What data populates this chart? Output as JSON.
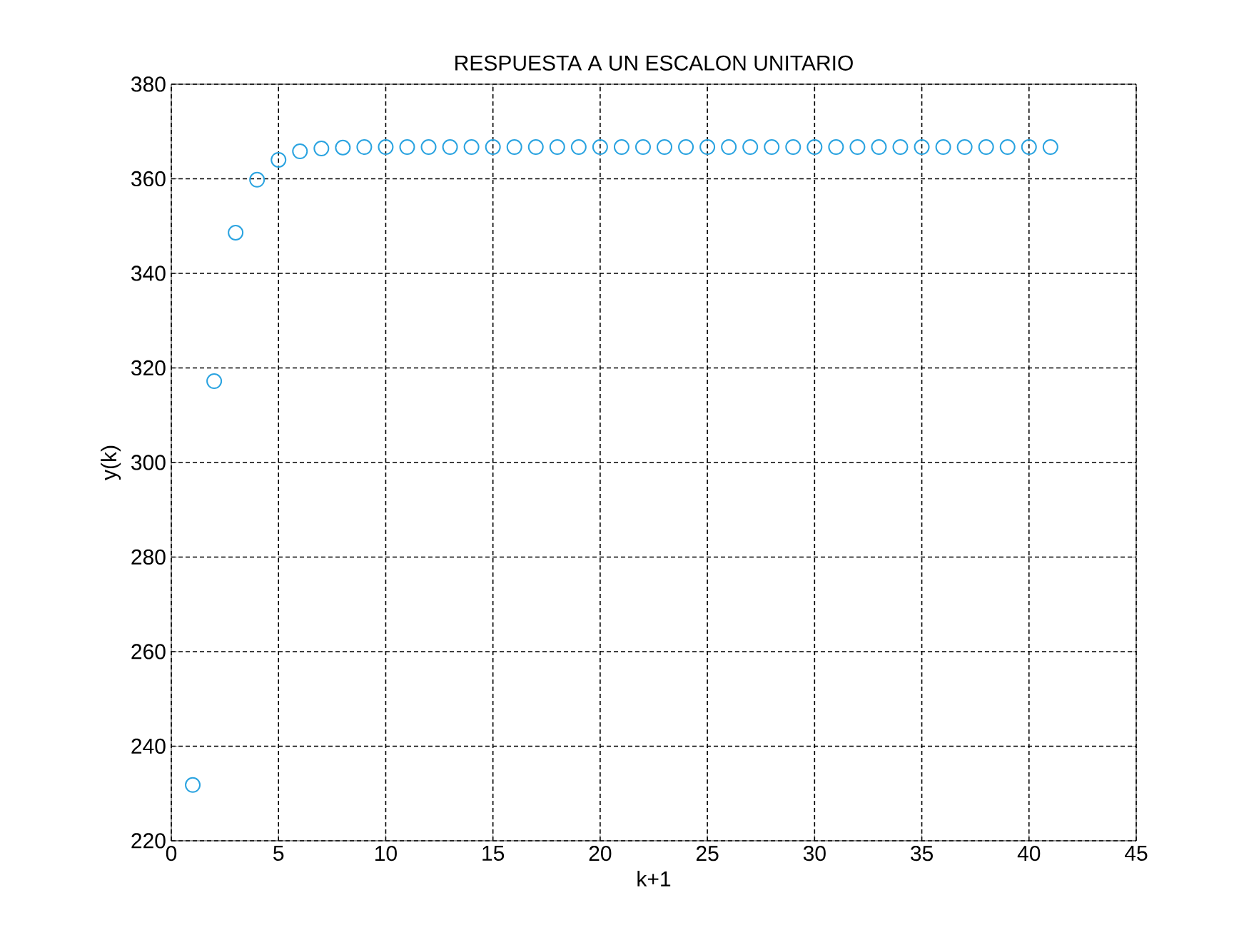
{
  "chart_data": {
    "type": "scatter",
    "title": "RESPUESTA A UN ESCALON UNITARIO",
    "xlabel": "k+1",
    "ylabel": "y(k)",
    "x": [
      1,
      2,
      3,
      4,
      5,
      6,
      7,
      8,
      9,
      10,
      11,
      12,
      13,
      14,
      15,
      16,
      17,
      18,
      19,
      20,
      21,
      22,
      23,
      24,
      25,
      26,
      27,
      28,
      29,
      30,
      31,
      32,
      33,
      34,
      35,
      36,
      37,
      38,
      39,
      40,
      41
    ],
    "series": [
      {
        "color": "#2aa3e0",
        "values": [
          231.8,
          317.2,
          348.6,
          359.8,
          364,
          365.8,
          366.4,
          366.6,
          366.7,
          366.7,
          366.7,
          366.7,
          366.7,
          366.7,
          366.7,
          366.7,
          366.7,
          366.7,
          366.7,
          366.7,
          366.7,
          366.7,
          366.7,
          366.7,
          366.7,
          366.7,
          366.7,
          366.7,
          366.7,
          366.7,
          366.7,
          366.7,
          366.7,
          366.7,
          366.7,
          366.7,
          366.7,
          366.7,
          366.7,
          366.7,
          366.7
        ]
      }
    ],
    "xlim": [
      0,
      45
    ],
    "ylim": [
      220,
      380
    ],
    "xticks": [
      0,
      5,
      10,
      15,
      20,
      25,
      30,
      35,
      40,
      45
    ],
    "yticks": [
      220,
      240,
      260,
      280,
      300,
      320,
      340,
      360,
      380
    ],
    "grid": true,
    "marker": "circle"
  }
}
